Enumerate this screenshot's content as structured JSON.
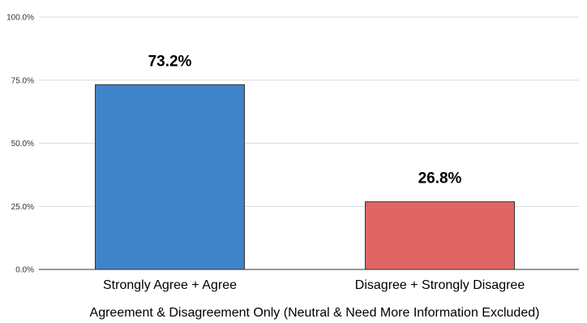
{
  "chart_data": {
    "type": "bar",
    "categories": [
      "Strongly Agree + Agree",
      "Disagree + Strongly Disagree"
    ],
    "values": [
      73.2,
      26.8
    ],
    "data_labels": [
      "73.2%",
      "26.8%"
    ],
    "colors": [
      "#3f83c8",
      "#e06666"
    ],
    "xlabel": "Agreement & Disagreement Only (Neutral & Need More Information Excluded)",
    "ylabel": "",
    "ylim": [
      0,
      100
    ],
    "yticks": [
      0,
      25,
      50,
      75,
      100
    ],
    "ytick_labels": [
      "0.0%",
      "25.0%",
      "50.0%",
      "75.0%",
      "100.0%"
    ],
    "grid": true,
    "legend": "none"
  }
}
